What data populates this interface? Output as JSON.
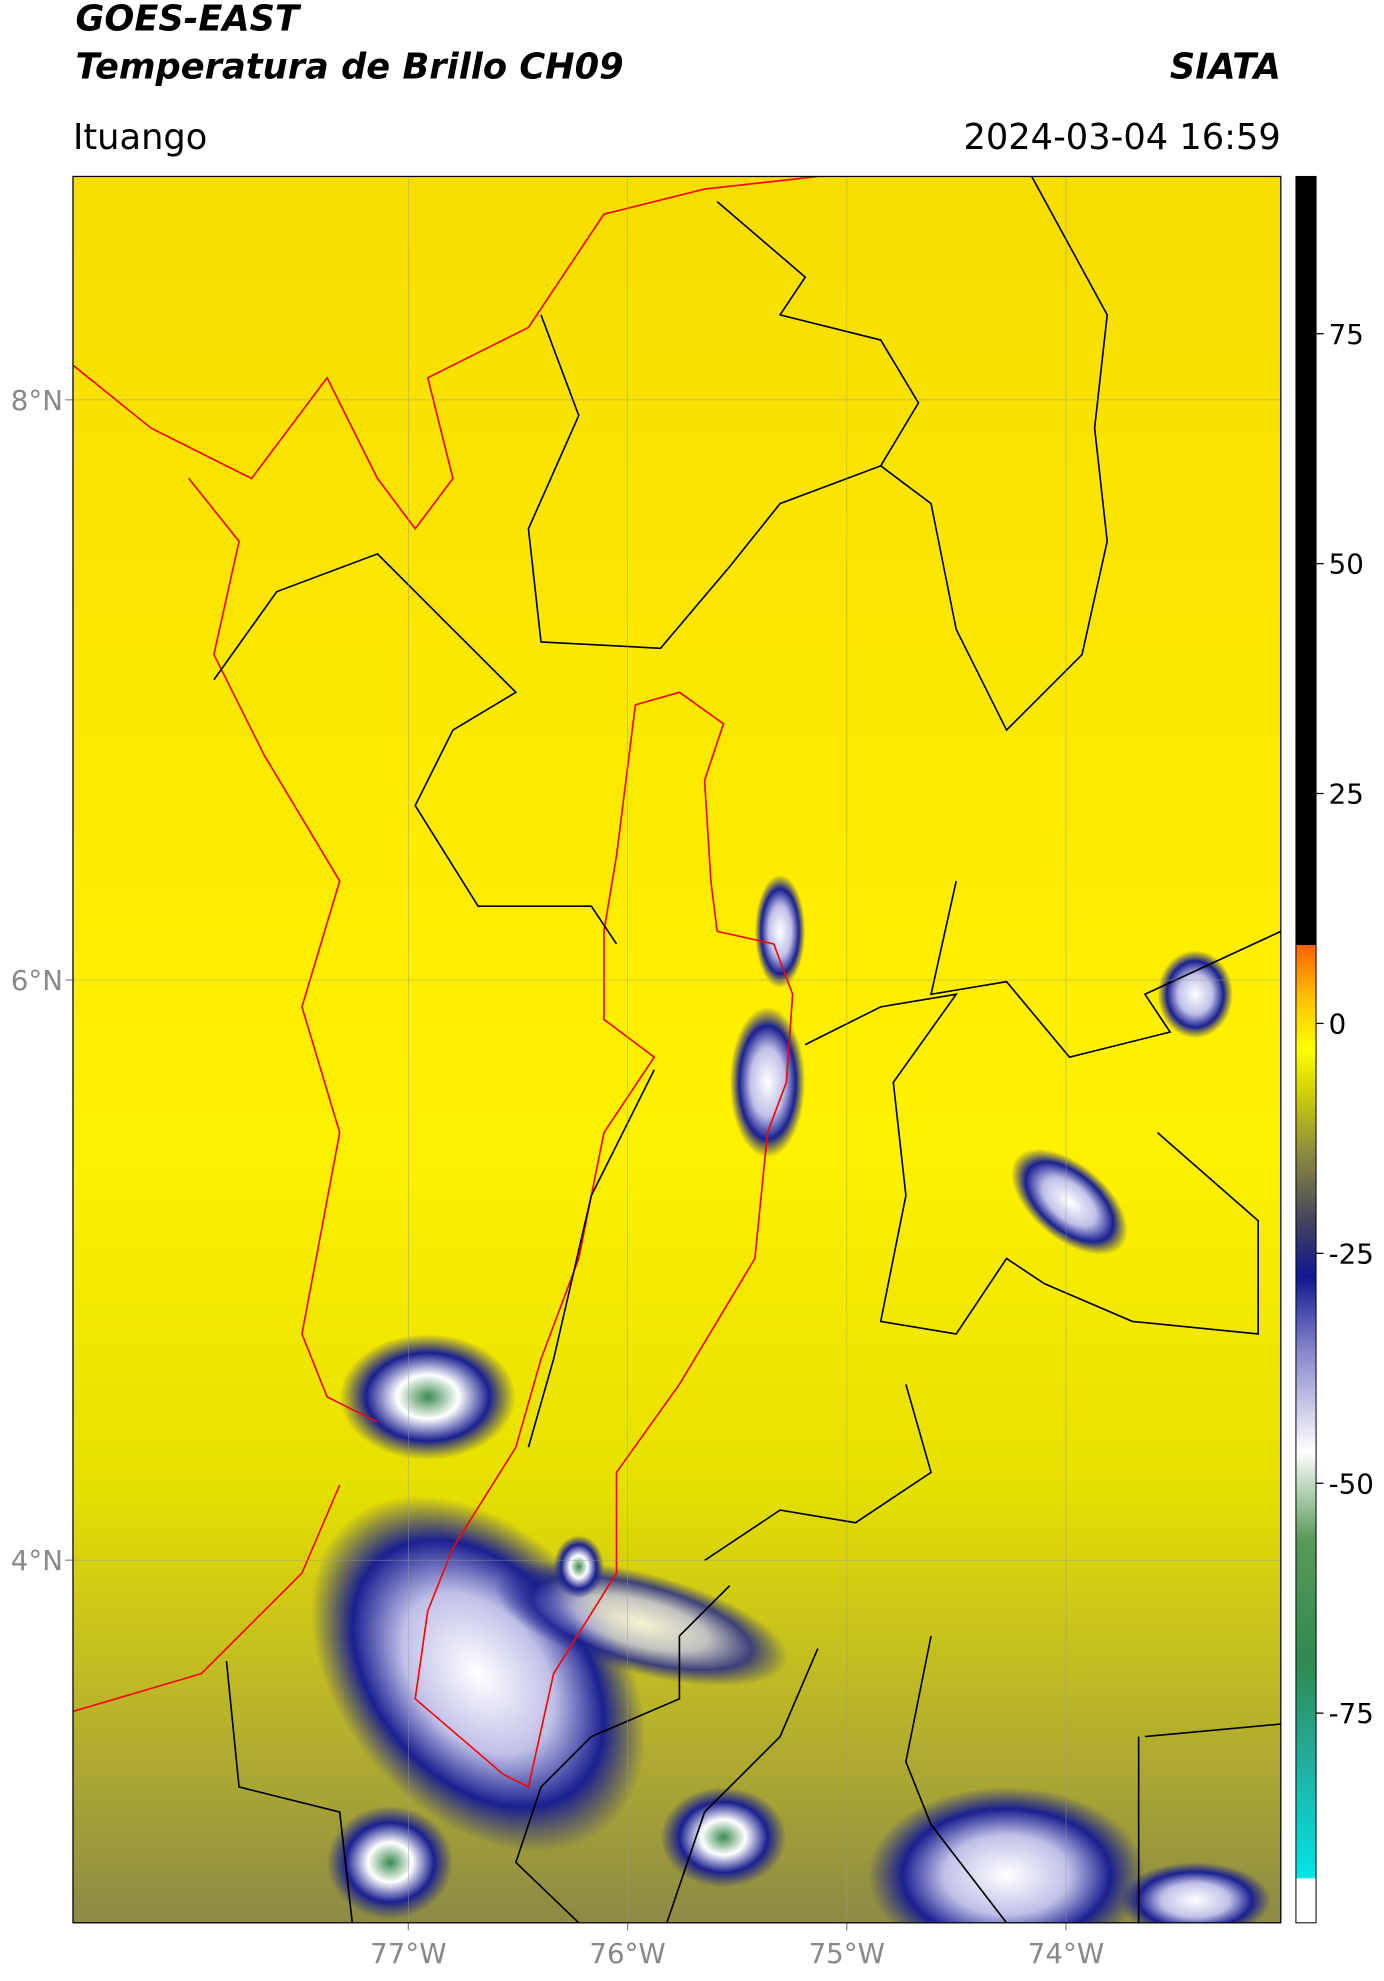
{
  "title": "GOES-EAST",
  "subtitle": "Temperatura de Brillo CH09",
  "source": "SIATA",
  "location": "Ituango",
  "datetime": "2024-03-04 16:59",
  "map": {
    "xlim": [
      -78.53,
      -73.02
    ],
    "ylim": [
      2.75,
      8.77
    ],
    "xticks": [
      {
        "value": -77,
        "label": "77°W"
      },
      {
        "value": -76,
        "label": "76°W"
      },
      {
        "value": -75,
        "label": "75°W"
      },
      {
        "value": -74,
        "label": "74°W"
      }
    ],
    "yticks": [
      {
        "value": 8,
        "label": "8°N"
      },
      {
        "value": 6,
        "label": "6°N"
      },
      {
        "value": 4,
        "label": "4°N"
      }
    ],
    "grid": true
  },
  "colorbar": {
    "clim": [
      -97.8,
      92.1
    ],
    "ticks": [
      75,
      50,
      25,
      0,
      -25,
      -50,
      -75
    ]
  }
}
